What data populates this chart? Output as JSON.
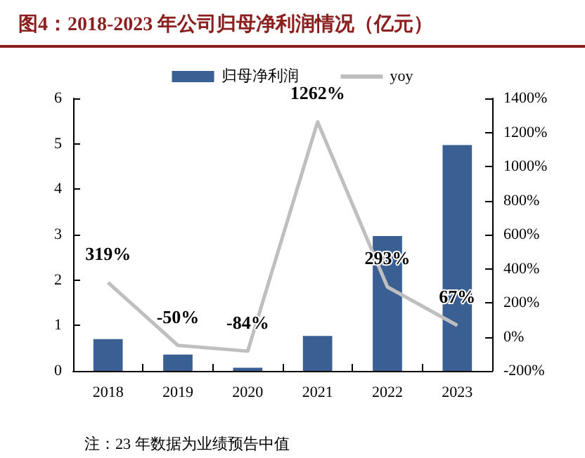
{
  "chart_data": {
    "type": "bar",
    "title": "图4：2018-2023 年公司归母净利润情况（亿元）",
    "categories": [
      "2018",
      "2019",
      "2020",
      "2021",
      "2022",
      "2023"
    ],
    "series": [
      {
        "name": "归母净利润",
        "color": "#3a5f93",
        "values": [
          0.7,
          0.36,
          0.07,
          0.77,
          2.97,
          4.97
        ]
      },
      {
        "name": "yoy",
        "type": "line",
        "axis": "y2",
        "color": "#bfbfbf",
        "values": [
          319,
          -50,
          -84,
          1262,
          293,
          67
        ],
        "value_labels": [
          "319%",
          "-50%",
          "-84%",
          "1262%",
          "293%",
          "67%"
        ]
      }
    ],
    "ylim": [
      0,
      6
    ],
    "yticks": [
      0,
      1,
      2,
      3,
      4,
      5,
      6
    ],
    "y2lim": [
      -200,
      1400
    ],
    "y2ticks": [
      {
        "value": -200,
        "label": "-200%"
      },
      {
        "value": 0,
        "label": "0%"
      },
      {
        "value": 200,
        "label": "200%"
      },
      {
        "value": 400,
        "label": "400%"
      },
      {
        "value": 600,
        "label": "600%"
      },
      {
        "value": 800,
        "label": "800%"
      },
      {
        "value": 1000,
        "label": "1000%"
      },
      {
        "value": 1200,
        "label": "1200%"
      },
      {
        "value": 1400,
        "label": "1400%"
      }
    ],
    "legend": "top",
    "marker": "none",
    "grid": false,
    "annotations": [
      "注：23 年数据为业绩预告中值"
    ]
  }
}
